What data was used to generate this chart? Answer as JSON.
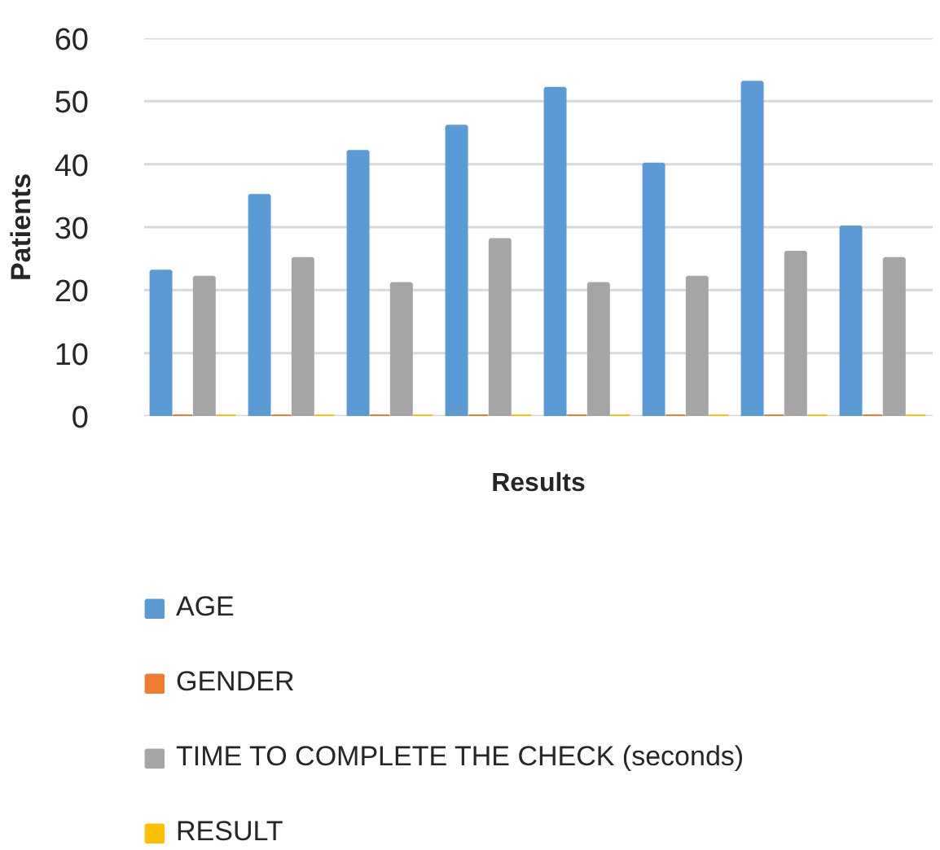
{
  "chart_data": {
    "type": "bar",
    "xlabel": "Results",
    "ylabel": "Patients",
    "categories": [
      null,
      null,
      null,
      null,
      null,
      null,
      null,
      null
    ],
    "series": [
      {
        "name": "AGE",
        "color": "#5b9bd5",
        "values": [
          23,
          35,
          42,
          46,
          52,
          40,
          53,
          30
        ]
      },
      {
        "name": "GENDER",
        "color": "#ed7d31",
        "values": [
          0,
          0,
          0,
          0,
          0,
          0,
          0,
          0
        ]
      },
      {
        "name": "TIME TO COMPLETE THE CHECK (seconds)",
        "color": "#a5a5a5",
        "values": [
          22,
          25,
          21,
          28,
          21,
          22,
          26,
          25
        ]
      },
      {
        "name": "RESULT",
        "color": "#ffc000",
        "values": [
          0,
          0,
          0,
          0,
          0,
          0,
          0,
          0
        ]
      }
    ],
    "ylim": [
      0,
      60
    ],
    "yticks": [
      0,
      10,
      20,
      30,
      40,
      50,
      60
    ],
    "grid": "y",
    "legend": "bottom",
    "tick_labels": "y"
  }
}
